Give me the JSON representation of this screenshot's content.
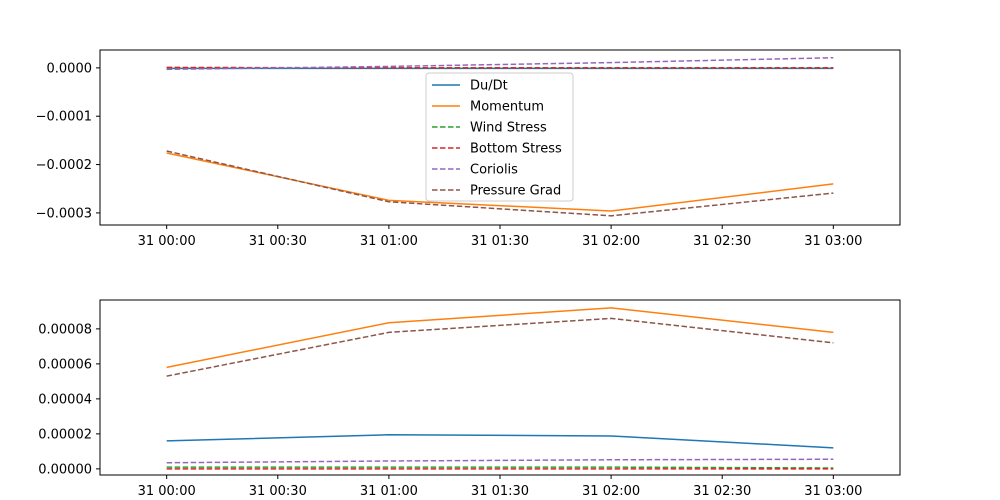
{
  "chart_data": [
    {
      "type": "line",
      "x": [
        "31 00:00",
        "31 01:00",
        "31 02:00",
        "31 03:00"
      ],
      "xticks": [
        "31 00:00",
        "31 00:30",
        "31 01:00",
        "31 01:30",
        "31 02:00",
        "31 02:30",
        "31 03:00"
      ],
      "xlim": [
        -0.3,
        3.3
      ],
      "ylim": [
        -0.000325,
        3.7e-05
      ],
      "yticks": [
        0.0,
        -0.0001,
        -0.0002,
        -0.0003
      ],
      "ytick_labels": [
        "0.0000",
        "−0.0001",
        "−0.0002",
        "−0.0003"
      ],
      "legend": "upper-center",
      "grid": false,
      "series": [
        {
          "name": "Du/Dt",
          "color": "#1f77b4",
          "dash": "solid",
          "values": [
            -1e-06,
            -1e-06,
            -1e-06,
            -1e-06
          ]
        },
        {
          "name": "Momentum",
          "color": "#ff7f0e",
          "dash": "solid",
          "values": [
            -0.000176,
            -0.000274,
            -0.000296,
            -0.00024
          ]
        },
        {
          "name": "Wind Stress",
          "color": "#2ca02c",
          "dash": "dashed",
          "values": [
            0.0,
            0.0,
            0.0,
            0.0
          ]
        },
        {
          "name": "Bottom Stress",
          "color": "#d62728",
          "dash": "dashed",
          "values": [
            1e-06,
            0.0,
            0.0,
            0.0
          ]
        },
        {
          "name": "Coriolis",
          "color": "#9467bd",
          "dash": "dashed",
          "values": [
            -3e-06,
            3e-06,
            1.1e-05,
            2.1e-05
          ]
        },
        {
          "name": "Pressure Grad",
          "color": "#8c564b",
          "dash": "dashed",
          "values": [
            -0.000172,
            -0.000277,
            -0.000306,
            -0.000259
          ]
        }
      ]
    },
    {
      "type": "line",
      "x": [
        "31 00:00",
        "31 01:00",
        "31 02:00",
        "31 03:00"
      ],
      "xticks": [
        "31 00:00",
        "31 00:30",
        "31 01:00",
        "31 01:30",
        "31 02:00",
        "31 02:30",
        "31 03:00"
      ],
      "xlim": [
        -0.3,
        3.3
      ],
      "ylim": [
        -3.5e-06,
        9.65e-05
      ],
      "yticks": [
        0.0,
        2e-05,
        4e-05,
        6e-05,
        8e-05
      ],
      "ytick_labels": [
        "0.00000",
        "0.00002",
        "0.00004",
        "0.00006",
        "0.00008"
      ],
      "grid": false,
      "series": [
        {
          "name": "Du/Dt",
          "color": "#1f77b4",
          "dash": "solid",
          "values": [
            1.6e-05,
            1.95e-05,
            1.88e-05,
            1.2e-05
          ]
        },
        {
          "name": "Momentum",
          "color": "#ff7f0e",
          "dash": "solid",
          "values": [
            5.8e-05,
            8.35e-05,
            9.2e-05,
            7.8e-05
          ]
        },
        {
          "name": "Wind Stress",
          "color": "#2ca02c",
          "dash": "dashed",
          "values": [
            1e-06,
            1e-06,
            1e-06,
            5e-07
          ]
        },
        {
          "name": "Bottom Stress",
          "color": "#d62728",
          "dash": "dashed",
          "values": [
            0.0,
            0.0,
            0.0,
            0.0
          ]
        },
        {
          "name": "Coriolis",
          "color": "#9467bd",
          "dash": "dashed",
          "values": [
            3.5e-06,
            4.5e-06,
            5.2e-06,
            5.5e-06
          ]
        },
        {
          "name": "Pressure Grad",
          "color": "#8c564b",
          "dash": "dashed",
          "values": [
            5.3e-05,
            7.8e-05,
            8.6e-05,
            7.2e-05
          ]
        }
      ]
    }
  ]
}
